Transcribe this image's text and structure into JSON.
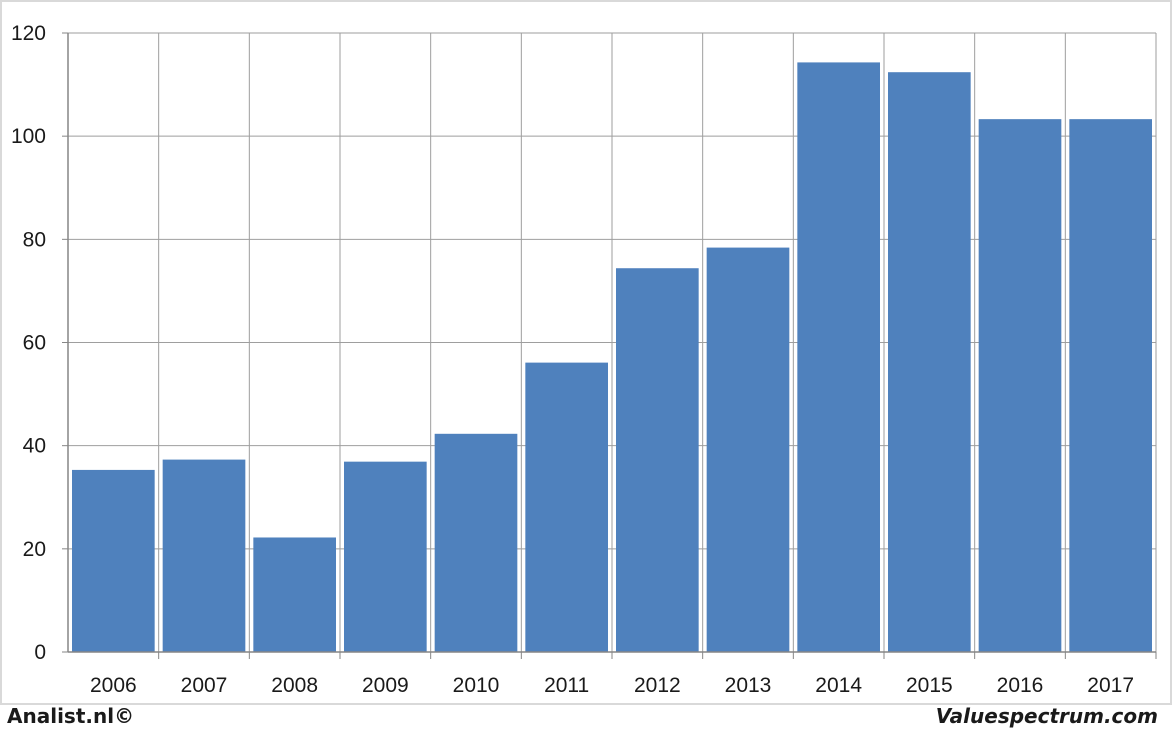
{
  "chart_data": {
    "type": "bar",
    "categories": [
      "2006",
      "2007",
      "2008",
      "2009",
      "2010",
      "2011",
      "2012",
      "2013",
      "2014",
      "2015",
      "2016",
      "2017"
    ],
    "values": [
      35.3,
      37.3,
      22.2,
      36.9,
      42.3,
      56.1,
      74.4,
      78.4,
      114.3,
      112.4,
      103.3,
      103.3
    ],
    "ylim": [
      0,
      120
    ],
    "yticks": [
      0,
      20,
      40,
      60,
      80,
      100,
      120
    ],
    "grid": true,
    "bar_color": "#4f81bd",
    "title": "",
    "xlabel": "",
    "ylabel": ""
  },
  "credits": {
    "left": "Analist.nl©",
    "right": "Valuespectrum.com"
  }
}
